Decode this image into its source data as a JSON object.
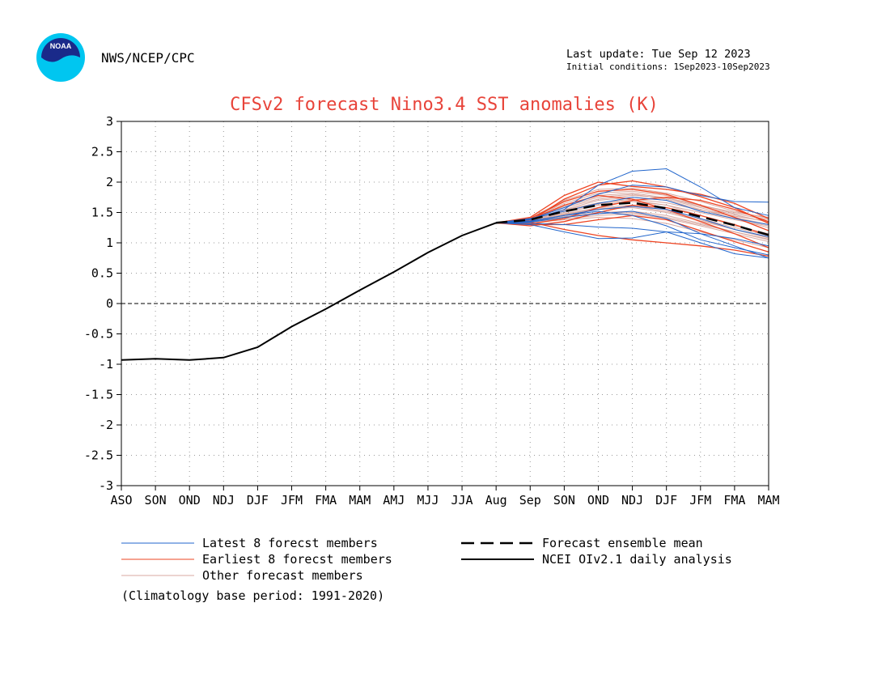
{
  "header": {
    "agency": "NWS/NCEP/CPC",
    "last_update": "Last update: Tue Sep 12 2023",
    "initial_conditions": "Initial conditions: 1Sep2023-10Sep2023",
    "logo_text": "NOAA"
  },
  "colors": {
    "title": "#e8443a",
    "latest": "#2266cc",
    "earliest": "#ee4422",
    "other": "#d8a8a0",
    "analysis": "#000000"
  },
  "chart_data": {
    "type": "line",
    "title": "CFSv2 forecast Nino3.4 SST anomalies (K)",
    "categories": [
      "ASO",
      "SON",
      "OND",
      "NDJ",
      "DJF",
      "JFM",
      "FMA",
      "MAM",
      "AMJ",
      "MJJ",
      "JJA",
      "Aug",
      "Sep",
      "SON",
      "OND",
      "NDJ",
      "DJF",
      "JFM",
      "FMA",
      "MAM"
    ],
    "ylim": [
      -3,
      3
    ],
    "yticks": [
      "3",
      "2.5",
      "2",
      "1.5",
      "1",
      "0.5",
      "0",
      "-0.5",
      "-1",
      "-1.5",
      "-2",
      "-2.5",
      "-3"
    ],
    "grid": true,
    "analysis": {
      "name": "NCEI OIv2.1 daily analysis",
      "values": [
        -0.93,
        -0.91,
        -0.93,
        -0.89,
        -0.72,
        -0.38,
        -0.09,
        0.22,
        0.52,
        0.84,
        1.12,
        1.33
      ]
    },
    "ensemble_mean": {
      "name": "Forecast ensemble mean",
      "values": [
        1.33,
        1.38,
        1.52,
        1.62,
        1.66,
        1.57,
        1.43,
        1.29,
        1.13
      ]
    },
    "latest_members": {
      "name": "Latest 8 forecst members",
      "series": [
        [
          1.33,
          1.38,
          1.55,
          1.95,
          2.18,
          2.22,
          1.92,
          1.58,
          1.45
        ],
        [
          1.33,
          1.3,
          1.18,
          1.07,
          1.08,
          1.18,
          1.0,
          0.82,
          0.75
        ],
        [
          1.33,
          1.35,
          1.45,
          1.52,
          1.45,
          1.28,
          1.05,
          0.92,
          0.8
        ],
        [
          1.33,
          1.32,
          1.3,
          1.26,
          1.24,
          1.18,
          1.15,
          1.07,
          0.95
        ],
        [
          1.33,
          1.4,
          1.52,
          1.65,
          1.75,
          1.7,
          1.52,
          1.4,
          1.3
        ],
        [
          1.33,
          1.36,
          1.45,
          1.55,
          1.6,
          1.55,
          1.4,
          1.22,
          1.1
        ],
        [
          1.33,
          1.34,
          1.42,
          1.48,
          1.52,
          1.4,
          1.15,
          0.95,
          0.75
        ],
        [
          1.33,
          1.39,
          1.58,
          1.8,
          1.95,
          1.92,
          1.78,
          1.68,
          1.67
        ]
      ]
    },
    "earliest_members": {
      "name": "Earliest 8 forecst members",
      "series": [
        [
          1.33,
          1.42,
          1.78,
          2.0,
          1.93,
          1.88,
          1.8,
          1.65,
          1.4
        ],
        [
          1.33,
          1.28,
          1.35,
          1.5,
          1.62,
          1.58,
          1.45,
          1.3,
          1.12
        ],
        [
          1.33,
          1.4,
          1.68,
          1.85,
          1.88,
          1.8,
          1.62,
          1.42,
          1.2
        ],
        [
          1.33,
          1.34,
          1.22,
          1.12,
          1.05,
          1.0,
          0.95,
          0.88,
          0.78
        ],
        [
          1.33,
          1.38,
          1.62,
          1.78,
          1.72,
          1.55,
          1.35,
          1.15,
          0.92
        ],
        [
          1.33,
          1.31,
          1.4,
          1.58,
          1.7,
          1.75,
          1.7,
          1.55,
          1.35
        ],
        [
          1.33,
          1.36,
          1.72,
          1.95,
          2.02,
          1.92,
          1.76,
          1.58,
          1.32
        ],
        [
          1.33,
          1.3,
          1.3,
          1.38,
          1.45,
          1.38,
          1.2,
          1.02,
          0.85
        ]
      ]
    },
    "other_members": {
      "name": "Other forecast members",
      "series": [
        [
          1.33,
          1.37,
          1.52,
          1.64,
          1.7,
          1.62,
          1.45,
          1.28,
          1.15
        ],
        [
          1.33,
          1.35,
          1.46,
          1.55,
          1.58,
          1.5,
          1.36,
          1.22,
          1.08
        ],
        [
          1.33,
          1.39,
          1.6,
          1.75,
          1.8,
          1.72,
          1.58,
          1.42,
          1.3
        ],
        [
          1.33,
          1.34,
          1.4,
          1.45,
          1.48,
          1.4,
          1.28,
          1.15,
          1.02
        ],
        [
          1.33,
          1.4,
          1.65,
          1.82,
          1.85,
          1.78,
          1.62,
          1.48,
          1.38
        ],
        [
          1.33,
          1.36,
          1.48,
          1.58,
          1.62,
          1.55,
          1.4,
          1.25,
          1.12
        ],
        [
          1.33,
          1.38,
          1.55,
          1.7,
          1.75,
          1.7,
          1.55,
          1.4,
          1.25
        ],
        [
          1.33,
          1.33,
          1.38,
          1.42,
          1.4,
          1.32,
          1.18,
          1.05,
          0.92
        ],
        [
          1.33,
          1.41,
          1.7,
          1.88,
          1.9,
          1.82,
          1.68,
          1.52,
          1.4
        ],
        [
          1.33,
          1.37,
          1.5,
          1.62,
          1.68,
          1.62,
          1.5,
          1.38,
          1.28
        ],
        [
          1.33,
          1.35,
          1.43,
          1.5,
          1.52,
          1.45,
          1.32,
          1.18,
          1.05
        ],
        [
          1.33,
          1.39,
          1.58,
          1.72,
          1.78,
          1.74,
          1.62,
          1.5,
          1.42
        ],
        [
          1.33,
          1.36,
          1.47,
          1.56,
          1.6,
          1.52,
          1.38,
          1.22,
          1.08
        ],
        [
          1.33,
          1.38,
          1.54,
          1.66,
          1.72,
          1.66,
          1.54,
          1.44,
          1.35
        ],
        [
          1.33,
          1.34,
          1.42,
          1.48,
          1.5,
          1.42,
          1.3,
          1.18,
          1.06
        ],
        [
          1.33,
          1.4,
          1.62,
          1.78,
          1.82,
          1.74,
          1.6,
          1.46,
          1.34
        ]
      ]
    },
    "legend": {
      "placement": "bottom",
      "entries": [
        "Latest 8 forecst members",
        "Earliest 8 forecst members",
        "Other forecast members",
        "Forecast ensemble mean",
        "NCEI OIv2.1 daily analysis"
      ],
      "climatology_note": "(Climatology base period: 1991-2020)"
    }
  }
}
